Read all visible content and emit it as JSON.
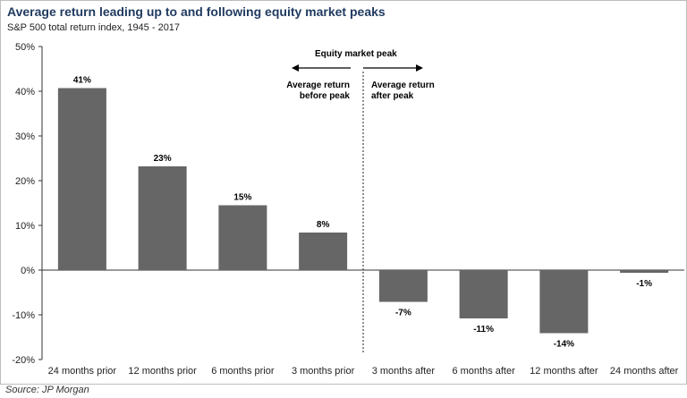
{
  "title": "Average return leading up to and following equity market peaks",
  "subtitle": "S&P 500 total return index, 1945 - 2017",
  "source": "Source: JP Morgan",
  "annotations": {
    "peak_label": "Equity market peak",
    "before_line1": "Average return",
    "before_line2": "before peak",
    "after_line1": "Average return",
    "after_line2": "after peak"
  },
  "colors": {
    "bar": "#666666",
    "title": "#1f3a5f",
    "axis": "#333333"
  },
  "chart_data": {
    "type": "bar",
    "categories": [
      "24 months prior",
      "12 months prior",
      "6 months prior",
      "3 months prior",
      "3 months after",
      "6 months after",
      "12 months after",
      "24 months after"
    ],
    "values": [
      40.7,
      23.2,
      14.5,
      8.4,
      -7.1,
      -10.8,
      -14.1,
      -0.6
    ],
    "data_labels": [
      "41%",
      "23%",
      "15%",
      "8%",
      "-7%",
      "-11%",
      "-14%",
      "-1%"
    ],
    "y_ticks": [
      50,
      40,
      30,
      20,
      10,
      0,
      -10,
      -20
    ],
    "y_tick_labels": [
      "50%",
      "40%",
      "30%",
      "20%",
      "10%",
      "0%",
      "-10%",
      "-20%"
    ],
    "ylim": [
      -20,
      50
    ],
    "title": "Average return leading up to and following equity market peaks",
    "xlabel": "",
    "ylabel": "",
    "grid": false,
    "legend": "none"
  }
}
